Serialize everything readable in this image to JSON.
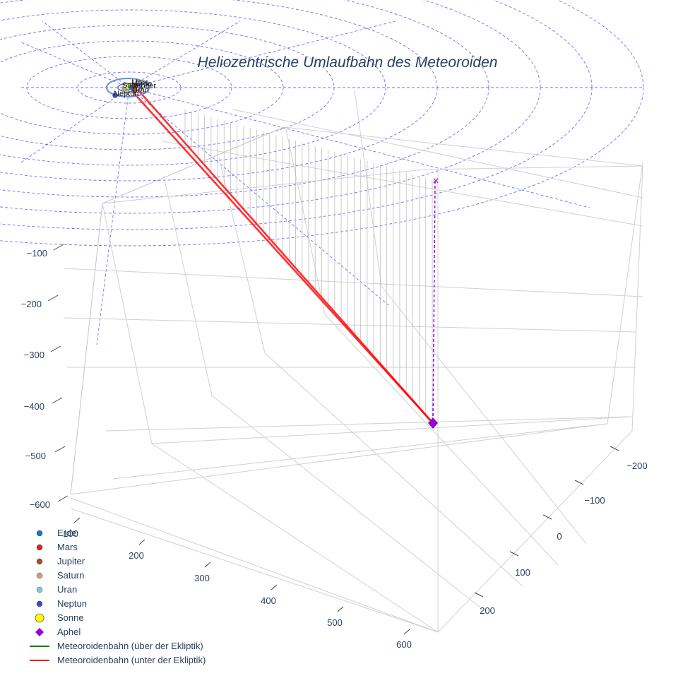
{
  "chart_data": {
    "type": "scatter3d",
    "title": "Heliozentrische Umlaufbahn des Meteoroiden",
    "axes": {
      "x": {
        "ticks": [
          100,
          200,
          300,
          400,
          500,
          600
        ],
        "range": [
          100,
          600
        ]
      },
      "y": {
        "ticks": [
          -200,
          -100,
          0,
          100,
          200
        ],
        "range": [
          -250,
          250
        ]
      },
      "z": {
        "ticks": [
          -100,
          -200,
          -300,
          -400,
          -500,
          -600
        ],
        "range": [
          -620,
          0
        ]
      }
    },
    "legend": [
      {
        "name": "Erde",
        "symbol": "circle",
        "color": "#1f77b4"
      },
      {
        "name": "Mars",
        "symbol": "circle",
        "color": "#d62728"
      },
      {
        "name": "Jupiter",
        "symbol": "circle",
        "color": "#a0522d"
      },
      {
        "name": "Saturn",
        "symbol": "circle",
        "color": "#c9a07a"
      },
      {
        "name": "Uran",
        "symbol": "circle",
        "color": "#7ec8e3"
      },
      {
        "name": "Neptun",
        "symbol": "circle",
        "color": "#3b4cc0"
      },
      {
        "name": "Sonne",
        "symbol": "circle-large",
        "color": "#ffff00"
      },
      {
        "name": "Aphel",
        "symbol": "diamond",
        "color": "#9400d3"
      },
      {
        "name": "Meteoroidenbahn (über der Ekliptik)",
        "symbol": "line",
        "color": "#008000"
      },
      {
        "name": "Meteoroidenbahn (unter der Ekliptik)",
        "symbol": "line",
        "color": "#ff0000"
      }
    ],
    "planet_labels": [
      "Mars",
      "Saturn",
      "Jupiter",
      "Erde",
      "Uran",
      "Neptun"
    ],
    "aphel_marker": "×",
    "orbit_segments": {
      "above_ecliptic": [],
      "below_ecliptic": "two nearly parallel red lines from the Sun region to the aphel point"
    }
  }
}
